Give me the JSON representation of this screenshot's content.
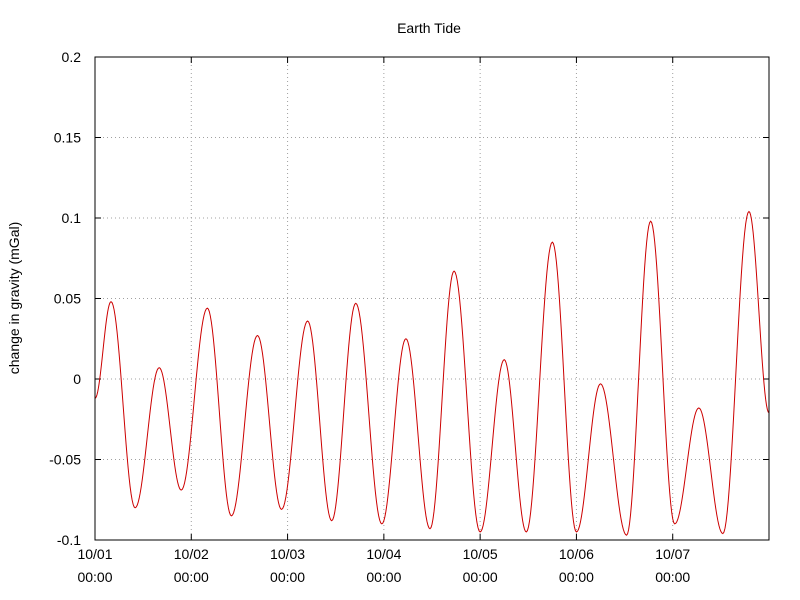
{
  "chart_data": {
    "type": "line",
    "title": "Earth Tide",
    "xlabel": "",
    "ylabel": "change in gravity (mGal)",
    "ylim": [
      -0.1,
      0.2
    ],
    "xlim": [
      "10/01 00:00",
      "10/08 00:00"
    ],
    "grid": true,
    "line_color": "#cc0000",
    "y_ticks": [
      "-0.1",
      "-0.05",
      "0",
      "0.05",
      "0.1",
      "0.15",
      "0.2"
    ],
    "x_ticks": [
      {
        "date": "10/01",
        "time": "00:00"
      },
      {
        "date": "10/02",
        "time": "00:00"
      },
      {
        "date": "10/03",
        "time": "00:00"
      },
      {
        "date": "10/04",
        "time": "00:00"
      },
      {
        "date": "10/05",
        "time": "00:00"
      },
      {
        "date": "10/06",
        "time": "00:00"
      },
      {
        "date": "10/07",
        "time": "00:00"
      }
    ],
    "series": [
      {
        "points": [
          [
            "10/01 00:00",
            -0.012
          ],
          [
            "10/01 04:00",
            0.048
          ],
          [
            "10/01 10:00",
            -0.08
          ],
          [
            "10/01 16:00",
            0.007
          ],
          [
            "10/01 21:30",
            -0.069
          ],
          [
            "10/02 04:00",
            0.044
          ],
          [
            "10/02 10:00",
            -0.085
          ],
          [
            "10/02 16:30",
            0.027
          ],
          [
            "10/02 22:30",
            -0.081
          ],
          [
            "10/03 05:00",
            0.036
          ],
          [
            "10/03 11:00",
            -0.088
          ],
          [
            "10/03 17:00",
            0.047
          ],
          [
            "10/03 23:30",
            -0.09
          ],
          [
            "10/04 05:30",
            0.025
          ],
          [
            "10/04 11:30",
            -0.093
          ],
          [
            "10/04 17:30",
            0.067
          ],
          [
            "10/05 00:00",
            -0.095
          ],
          [
            "10/05 06:00",
            0.012
          ],
          [
            "10/05 11:30",
            -0.095
          ],
          [
            "10/05 18:00",
            0.085
          ],
          [
            "10/06 00:00",
            -0.095
          ],
          [
            "10/06 06:00",
            -0.003
          ],
          [
            "10/06 12:30",
            -0.097
          ],
          [
            "10/06 18:30",
            0.098
          ],
          [
            "10/07 00:30",
            -0.09
          ],
          [
            "10/07 06:30",
            -0.018
          ],
          [
            "10/07 12:30",
            -0.096
          ],
          [
            "10/07 19:00",
            0.104
          ],
          [
            "10/08 00:00",
            -0.021
          ]
        ]
      }
    ]
  }
}
